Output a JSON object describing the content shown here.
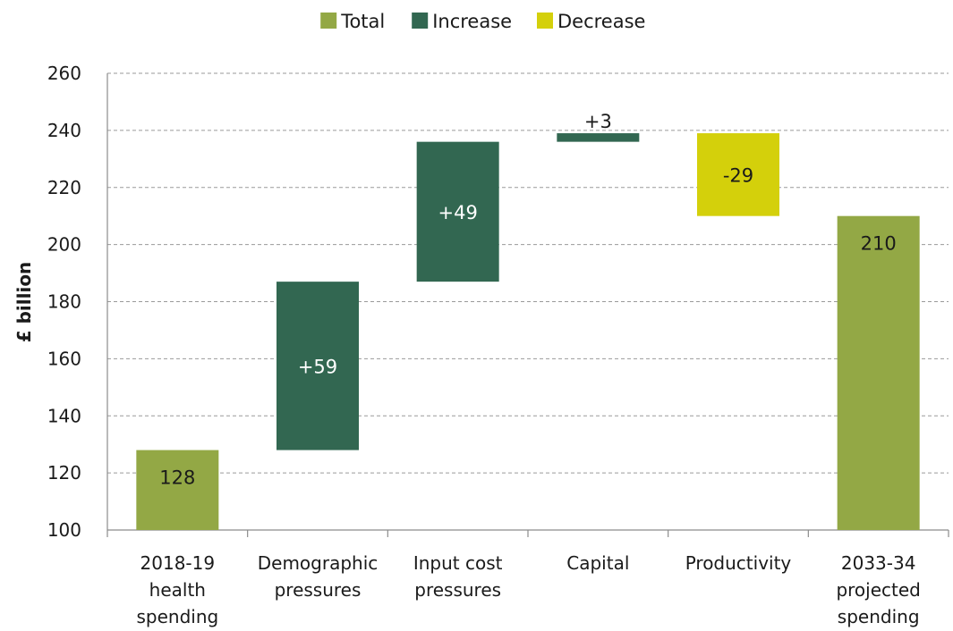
{
  "chart_data": {
    "type": "bar",
    "subtype": "waterfall",
    "title": "",
    "ylabel": "£ billion",
    "xlabel": "",
    "ylim": [
      100,
      260
    ],
    "yticks": [
      100,
      120,
      140,
      160,
      180,
      200,
      220,
      240,
      260
    ],
    "grid": true,
    "legend_position": "top",
    "legend": [
      {
        "name": "Total",
        "color": "#93a845"
      },
      {
        "name": "Increase",
        "color": "#326751"
      },
      {
        "name": "Decrease",
        "color": "#d4d00b"
      }
    ],
    "categories": [
      [
        "2018-19",
        "health",
        "spending"
      ],
      [
        "Demographic",
        "pressures"
      ],
      [
        "Input cost",
        "pressures"
      ],
      [
        "Capital"
      ],
      [
        "Productivity"
      ],
      [
        "2033-34",
        "projected",
        "spending"
      ]
    ],
    "bars": [
      {
        "kind": "Total",
        "start": 100,
        "end": 128,
        "label": "128"
      },
      {
        "kind": "Increase",
        "start": 128,
        "end": 187,
        "label": "+59"
      },
      {
        "kind": "Increase",
        "start": 187,
        "end": 236,
        "label": "+49"
      },
      {
        "kind": "Increase",
        "start": 236,
        "end": 239,
        "label": "+3"
      },
      {
        "kind": "Decrease",
        "start": 239,
        "end": 210,
        "label": "-29"
      },
      {
        "kind": "Total",
        "start": 100,
        "end": 210,
        "label": "210"
      }
    ]
  }
}
